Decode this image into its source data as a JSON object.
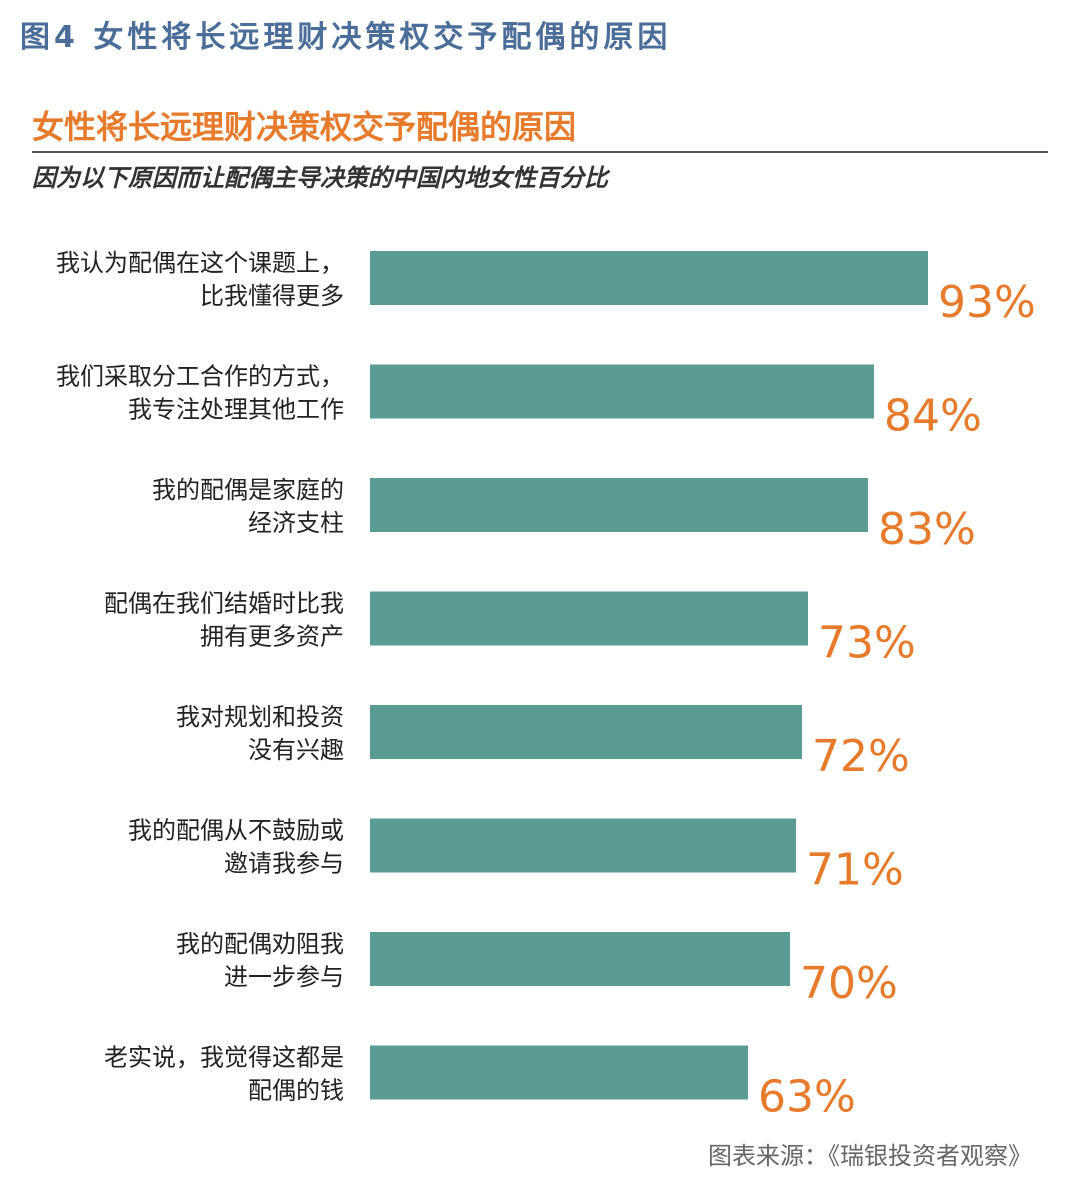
{
  "figure_label": "图4 女性将长远理财决策权交予配偶的原因",
  "source": "图表来源：《瑞银投资者观察》",
  "colors": {
    "bar": "#5a9b93",
    "value": "#e87a2c",
    "figure_label": "#4a6d99"
  },
  "chart_data": {
    "type": "bar",
    "orientation": "horizontal",
    "title": "女性将长远理财决策权交予配偶的原因",
    "subtitle": "因为以下原因而让配偶主导决策的中国内地女性百分比",
    "xlabel": "",
    "ylabel": "",
    "xlim": [
      0,
      100
    ],
    "grid": false,
    "categories": [
      [
        "我认为配偶在这个课题上，",
        "比我懂得更多"
      ],
      [
        "我们采取分工合作的方式，",
        "我专注处理其他工作"
      ],
      [
        "我的配偶是家庭的",
        "经济支柱"
      ],
      [
        "配偶在我们结婚时比我",
        "拥有更多资产"
      ],
      [
        "我对规划和投资",
        "没有兴趣"
      ],
      [
        "我的配偶从不鼓励或",
        "邀请我参与"
      ],
      [
        "我的配偶劝阻我",
        "进一步参与"
      ],
      [
        "老实说，我觉得这都是",
        "配偶的钱"
      ]
    ],
    "values": [
      93,
      84,
      83,
      73,
      72,
      71,
      70,
      63
    ],
    "value_labels": [
      "93%",
      "84%",
      "83%",
      "73%",
      "72%",
      "71%",
      "70%",
      "63%"
    ]
  }
}
